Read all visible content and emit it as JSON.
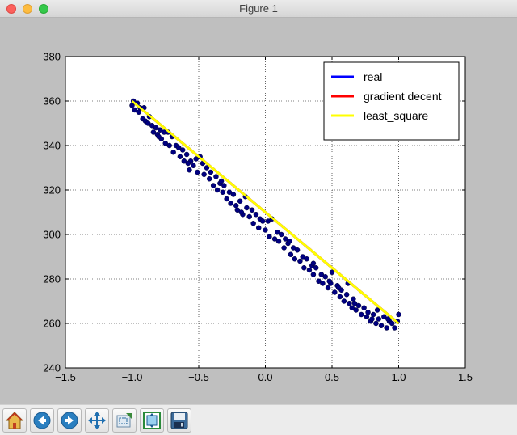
{
  "window": {
    "title": "Figure 1"
  },
  "toolbar": {
    "buttons": [
      {
        "name": "home-button",
        "icon": "home-icon"
      },
      {
        "name": "back-button",
        "icon": "arrow-left-icon"
      },
      {
        "name": "forward-button",
        "icon": "arrow-right-icon"
      },
      {
        "name": "pan-button",
        "icon": "move-icon"
      },
      {
        "name": "zoom-button",
        "icon": "zoom-rect-icon"
      },
      {
        "name": "subplots-button",
        "icon": "subplots-icon"
      },
      {
        "name": "save-button",
        "icon": "floppy-disk-icon"
      }
    ]
  },
  "chart_data": {
    "type": "scatter",
    "title": "",
    "xlabel": "",
    "ylabel": "",
    "xlim": [
      -1.5,
      1.5
    ],
    "ylim": [
      240,
      380
    ],
    "xticks": [
      -1.5,
      -1.0,
      -0.5,
      0.0,
      0.5,
      1.0,
      1.5
    ],
    "xtick_labels": [
      "−1.5",
      "−1.0",
      "−0.5",
      "0.0",
      "0.5",
      "1.0",
      "1.5"
    ],
    "yticks": [
      240,
      260,
      280,
      300,
      320,
      340,
      360,
      380
    ],
    "ytick_labels": [
      "240",
      "260",
      "280",
      "300",
      "320",
      "340",
      "360",
      "380"
    ],
    "grid": true,
    "legend_position": "top-right",
    "lines": [
      {
        "name": "real",
        "color": "#0000ff",
        "x": [
          -1.0,
          1.0
        ],
        "y": [
          360,
          260
        ]
      },
      {
        "name": "gradient decent",
        "color": "#ff0000",
        "x": [
          -1.0,
          1.0
        ],
        "y": [
          360,
          260
        ]
      },
      {
        "name": "least_square",
        "color": "#ffff00",
        "x": [
          -1.0,
          1.0
        ],
        "y": [
          360,
          260
        ]
      }
    ],
    "scatter": {
      "color": "#000080",
      "points": [
        [
          -1.0,
          358
        ],
        [
          -0.99,
          360
        ],
        [
          -0.98,
          356
        ],
        [
          -0.96,
          359
        ],
        [
          -0.95,
          355
        ],
        [
          -0.94,
          357
        ],
        [
          -0.92,
          352
        ],
        [
          -0.91,
          357
        ],
        [
          -0.9,
          351
        ],
        [
          -0.88,
          350
        ],
        [
          -0.87,
          353
        ],
        [
          -0.85,
          349
        ],
        [
          -0.84,
          346
        ],
        [
          -0.82,
          348
        ],
        [
          -0.81,
          345
        ],
        [
          -0.79,
          347
        ],
        [
          -0.78,
          343
        ],
        [
          -0.76,
          346
        ],
        [
          -0.75,
          341
        ],
        [
          -0.73,
          346
        ],
        [
          -0.72,
          340
        ],
        [
          -0.7,
          344
        ],
        [
          -0.69,
          337
        ],
        [
          -0.67,
          340
        ],
        [
          -0.65,
          339
        ],
        [
          -0.64,
          335
        ],
        [
          -0.62,
          338
        ],
        [
          -0.61,
          333
        ],
        [
          -0.59,
          336
        ],
        [
          -0.57,
          329
        ],
        [
          -0.56,
          333
        ],
        [
          -0.54,
          331
        ],
        [
          -0.52,
          334
        ],
        [
          -0.51,
          328
        ],
        [
          -0.49,
          335
        ],
        [
          -0.47,
          332
        ],
        [
          -0.46,
          327
        ],
        [
          -0.44,
          330
        ],
        [
          -0.42,
          325
        ],
        [
          -0.41,
          328
        ],
        [
          -0.39,
          322
        ],
        [
          -0.37,
          326
        ],
        [
          -0.36,
          320
        ],
        [
          -0.34,
          323
        ],
        [
          -0.32,
          319
        ],
        [
          -0.31,
          322
        ],
        [
          -0.29,
          316
        ],
        [
          -0.27,
          319
        ],
        [
          -0.26,
          314
        ],
        [
          -0.24,
          318
        ],
        [
          -0.22,
          313
        ],
        [
          -0.21,
          311
        ],
        [
          -0.19,
          315
        ],
        [
          -0.17,
          309
        ],
        [
          -0.15,
          317
        ],
        [
          -0.14,
          312
        ],
        [
          -0.12,
          308
        ],
        [
          -0.1,
          311
        ],
        [
          -0.09,
          305
        ],
        [
          -0.07,
          309
        ],
        [
          -0.05,
          303
        ],
        [
          -0.04,
          307
        ],
        [
          -0.02,
          306
        ],
        [
          0.0,
          302
        ],
        [
          0.02,
          306
        ],
        [
          0.03,
          299
        ],
        [
          0.05,
          307
        ],
        [
          0.07,
          298
        ],
        [
          0.09,
          301
        ],
        [
          0.1,
          297
        ],
        [
          0.12,
          300
        ],
        [
          0.14,
          294
        ],
        [
          0.15,
          298
        ],
        [
          0.17,
          296
        ],
        [
          0.19,
          291
        ],
        [
          0.21,
          294
        ],
        [
          0.22,
          289
        ],
        [
          0.24,
          293
        ],
        [
          0.26,
          288
        ],
        [
          0.28,
          290
        ],
        [
          0.29,
          285
        ],
        [
          0.31,
          289
        ],
        [
          0.33,
          284
        ],
        [
          0.35,
          286
        ],
        [
          0.36,
          282
        ],
        [
          0.38,
          285
        ],
        [
          0.4,
          279
        ],
        [
          0.42,
          282
        ],
        [
          0.43,
          278
        ],
        [
          0.45,
          281
        ],
        [
          0.47,
          276
        ],
        [
          0.49,
          278
        ],
        [
          0.5,
          283
        ],
        [
          0.52,
          274
        ],
        [
          0.54,
          277
        ],
        [
          0.56,
          272
        ],
        [
          0.57,
          275
        ],
        [
          0.59,
          270
        ],
        [
          0.61,
          273
        ],
        [
          0.63,
          269
        ],
        [
          0.65,
          267
        ],
        [
          0.66,
          271
        ],
        [
          0.68,
          266
        ],
        [
          0.7,
          268
        ],
        [
          0.72,
          264
        ],
        [
          0.74,
          267
        ],
        [
          0.76,
          263
        ],
        [
          0.77,
          265
        ],
        [
          0.79,
          261
        ],
        [
          0.81,
          264
        ],
        [
          0.83,
          260
        ],
        [
          0.85,
          262
        ],
        [
          0.87,
          259
        ],
        [
          0.89,
          263
        ],
        [
          0.91,
          258
        ],
        [
          0.93,
          261
        ],
        [
          0.95,
          260
        ],
        [
          0.97,
          258
        ],
        [
          0.99,
          261
        ],
        [
          1.0,
          264
        ],
        [
          0.8,
          262
        ],
        [
          0.84,
          266
        ],
        [
          0.62,
          278
        ],
        [
          0.48,
          279
        ],
        [
          -0.18,
          310
        ],
        [
          0.55,
          276
        ],
        [
          -0.58,
          332
        ],
        [
          -0.8,
          344
        ],
        [
          0.36,
          287
        ],
        [
          0.18,
          297
        ],
        [
          -0.33,
          324
        ],
        [
          0.67,
          269
        ],
        [
          0.92,
          262
        ]
      ]
    }
  }
}
